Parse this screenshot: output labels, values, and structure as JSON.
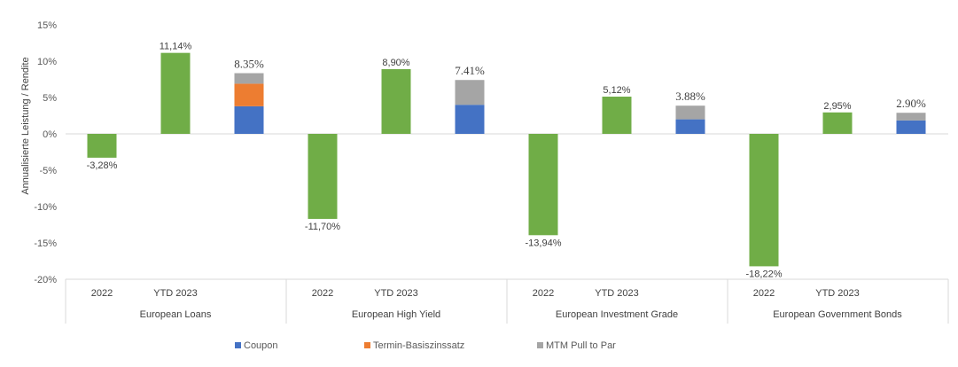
{
  "chart_data": {
    "type": "bar",
    "ylabel": "Annualisierte Leistung / Rendite",
    "ylim": [
      -20,
      15
    ],
    "yticks": [
      "15%",
      "10%",
      "5%",
      "0%",
      "-5%",
      "-10%",
      "-15%",
      "-20%"
    ],
    "ytick_values": [
      15,
      10,
      5,
      0,
      -5,
      -10,
      -15,
      -20
    ],
    "groups": [
      {
        "name": "European Loans",
        "bars": [
          {
            "label": "2022",
            "value": -3.28,
            "value_label": "-3,28%"
          },
          {
            "label": "YTD 2023",
            "value": 11.14,
            "value_label": "11,14%"
          },
          {
            "label": "",
            "stack": {
              "coupon": 3.8,
              "termin": 3.1,
              "mtm": 1.45
            },
            "total_label": "8.35%"
          }
        ]
      },
      {
        "name": "European High Yield",
        "bars": [
          {
            "label": "2022",
            "value": -11.7,
            "value_label": "-11,70%"
          },
          {
            "label": "YTD 2023",
            "value": 8.9,
            "value_label": "8,90%"
          },
          {
            "label": "",
            "stack": {
              "coupon": 4.0,
              "termin": 0,
              "mtm": 3.41
            },
            "total_label": "7.41%"
          }
        ]
      },
      {
        "name": "European Investment Grade",
        "bars": [
          {
            "label": "2022",
            "value": -13.94,
            "value_label": "-13,94%"
          },
          {
            "label": "YTD 2023",
            "value": 5.12,
            "value_label": "5,12%"
          },
          {
            "label": "",
            "stack": {
              "coupon": 2.0,
              "termin": 0,
              "mtm": 1.88
            },
            "total_label": "3.88%"
          }
        ]
      },
      {
        "name": "European Government Bonds",
        "bars": [
          {
            "label": "2022",
            "value": -18.22,
            "value_label": "-18,22%"
          },
          {
            "label": "YTD 2023",
            "value": 2.95,
            "value_label": "2,95%"
          },
          {
            "label": "",
            "stack": {
              "coupon": 1.85,
              "termin": 0,
              "mtm": 1.05
            },
            "total_label": "2.90%"
          }
        ]
      }
    ],
    "legend": {
      "position": "bottom",
      "items": [
        {
          "key": "coupon",
          "name": "Coupon"
        },
        {
          "key": "termin",
          "name": "Termin-Basiszinssatz"
        },
        {
          "key": "mtm",
          "name": "MTM Pull to Par"
        }
      ]
    },
    "colors": {
      "returns": "#70ad47",
      "coupon": "#4472c4",
      "termin": "#ed7d31",
      "mtm": "#a5a5a5",
      "axis": "#d9d9d9"
    }
  }
}
